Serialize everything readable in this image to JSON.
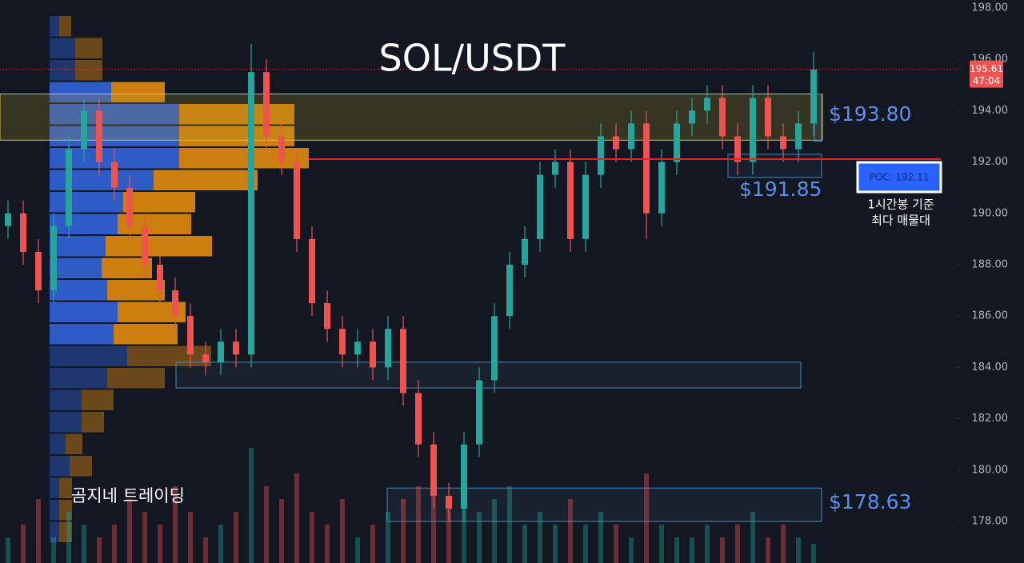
{
  "chart_data": {
    "type": "candlestick",
    "title": "SOL/USDT",
    "watermark": "곰지네 트레이딩",
    "ylim": [
      176.38,
      198.31
    ],
    "yticks": [
      {
        "value": 178,
        "label": "178.00"
      },
      {
        "value": 180,
        "label": "180.00"
      },
      {
        "value": 182,
        "label": "182.00"
      },
      {
        "value": 184,
        "label": "184.00"
      },
      {
        "value": 186,
        "label": "186.00"
      },
      {
        "value": 188,
        "label": "188.00"
      },
      {
        "value": 190,
        "label": "190.00"
      },
      {
        "value": 192,
        "label": "192.00"
      },
      {
        "value": 194,
        "label": "194.00"
      },
      {
        "value": 196,
        "label": "196.00"
      },
      {
        "value": 198,
        "label": "198.00"
      }
    ],
    "up_color": "#26a69a",
    "down_color": "#ef5350",
    "open": [
      189.5,
      190.0,
      188.5,
      187.0,
      189.5,
      192.5,
      194.0,
      192.0,
      191.0,
      189.5,
      188.0,
      187.0,
      186.0,
      184.5,
      184.2,
      185.0,
      184.5,
      195.5,
      193.0,
      192.0,
      189.0,
      186.5,
      185.5,
      184.5,
      185.0,
      184.0,
      185.5,
      183.0,
      181.0,
      179.0,
      178.5,
      181.0,
      183.5,
      186.0,
      188.0,
      189.0,
      191.5,
      192.0,
      189.0,
      191.5,
      193.0,
      192.5,
      193.5,
      190.0,
      192.0,
      193.5,
      194.0,
      194.5,
      193.0,
      192.0,
      194.5,
      193.0,
      192.5,
      193.5
    ],
    "high": [
      190.5,
      190.5,
      189.0,
      190.0,
      193.0,
      194.5,
      194.5,
      192.5,
      191.5,
      190.0,
      188.5,
      187.5,
      186.5,
      185.0,
      185.5,
      185.5,
      196.6,
      196.0,
      193.5,
      192.5,
      189.5,
      187.0,
      186.0,
      185.5,
      185.5,
      186.0,
      186.0,
      183.5,
      181.5,
      179.5,
      181.5,
      184.0,
      186.5,
      188.5,
      189.5,
      192.0,
      192.5,
      192.5,
      192.0,
      193.5,
      193.5,
      194.0,
      194.0,
      192.5,
      194.0,
      194.5,
      195.0,
      195.0,
      193.5,
      195.0,
      195.0,
      193.5,
      194.0,
      196.3
    ],
    "low": [
      189.0,
      188.0,
      186.5,
      186.5,
      189.0,
      192.0,
      191.5,
      190.5,
      189.0,
      187.5,
      186.5,
      185.5,
      184.0,
      183.7,
      183.7,
      184.0,
      184.0,
      192.5,
      191.5,
      188.5,
      186.0,
      185.0,
      184.0,
      184.0,
      183.5,
      183.5,
      182.5,
      180.5,
      178.5,
      178.0,
      178.0,
      180.5,
      183.0,
      185.5,
      187.5,
      188.5,
      191.0,
      188.5,
      188.5,
      191.0,
      192.0,
      192.0,
      189.0,
      189.5,
      191.5,
      193.0,
      193.5,
      192.5,
      191.5,
      191.5,
      192.5,
      192.0,
      192.0,
      193.0
    ],
    "close": [
      190.0,
      188.5,
      187.0,
      189.5,
      192.5,
      194.0,
      192.0,
      191.0,
      189.5,
      188.0,
      187.0,
      186.0,
      184.5,
      184.2,
      185.0,
      184.5,
      195.5,
      193.0,
      192.0,
      189.0,
      186.5,
      185.5,
      184.5,
      185.0,
      184.0,
      185.5,
      183.0,
      181.0,
      179.0,
      178.5,
      181.0,
      183.5,
      186.0,
      188.0,
      189.0,
      191.5,
      192.0,
      189.0,
      191.5,
      193.0,
      192.5,
      193.5,
      190.0,
      192.0,
      193.5,
      194.0,
      194.5,
      193.0,
      192.0,
      194.5,
      193.0,
      192.5,
      193.5,
      195.6
    ],
    "volume": [
      2,
      3,
      5,
      2,
      4,
      3,
      2,
      3,
      5,
      4,
      3,
      6,
      4,
      2,
      3,
      4,
      9,
      6,
      5,
      7,
      4,
      3,
      5,
      2,
      3,
      4,
      5,
      6,
      7,
      5,
      8,
      4,
      5,
      6,
      3,
      4,
      3,
      5,
      3,
      4,
      3,
      2,
      7,
      3,
      2,
      2,
      3,
      2,
      3,
      4,
      2,
      3,
      2,
      1.5
    ],
    "volume_profile": {
      "buy_color": "#2f5fd0",
      "sell_color": "#d6850f",
      "buy": [
        12,
        32,
        32,
        77,
        162,
        162,
        162,
        130,
        92,
        85,
        70,
        65,
        72,
        85,
        80,
        97,
        72,
        40,
        40,
        20,
        25,
        12,
        12,
        12
      ],
      "sell": [
        15,
        34,
        34,
        67,
        144,
        144,
        162,
        130,
        90,
        92,
        133,
        63,
        72,
        85,
        80,
        105,
        72,
        40,
        28,
        21,
        28,
        16,
        16,
        16
      ]
    },
    "zones": [
      {
        "low": 192.85,
        "high": 194.65
      },
      {
        "low": 183.2,
        "high": 184.2
      },
      {
        "low": 178.0,
        "high": 179.3
      },
      {
        "low": 191.4,
        "high": 192.3
      },
      {
        "low": 192.8,
        "high": 194.65
      }
    ],
    "poc": 192.11,
    "poc_label": "POC: 192.11",
    "poc_note": [
      "1시간봉 기준",
      "최다 매물대"
    ],
    "last_price": 195.61,
    "countdown": "47:04",
    "annotations": [
      "$193.80",
      "$191.85",
      "$178.63"
    ]
  }
}
